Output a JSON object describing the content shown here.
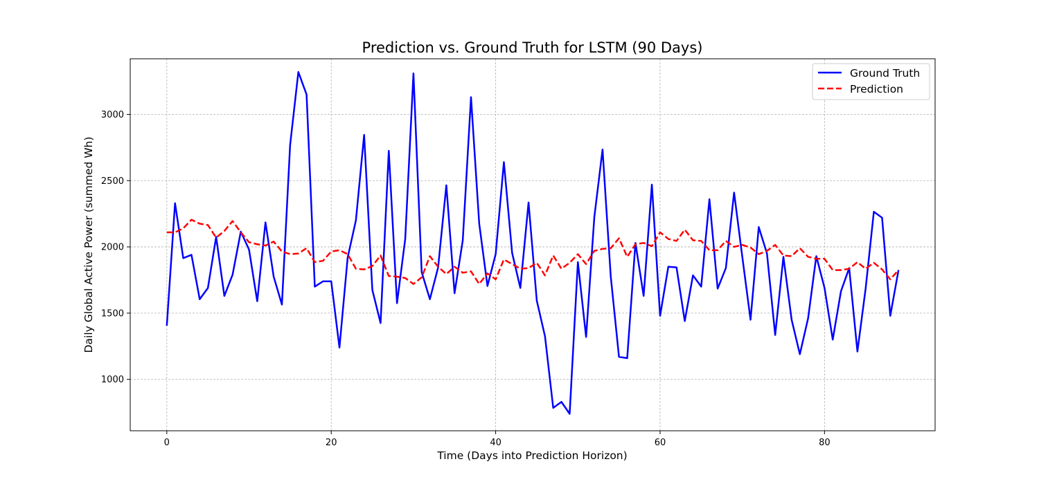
{
  "chart_data": {
    "type": "line",
    "title": "Prediction vs. Ground Truth for LSTM (90 Days)",
    "xlabel": "Time (Days into Prediction Horizon)",
    "ylabel": "Daily Global Active Power (summed Wh)",
    "xlim": [
      -4.45,
      93.45
    ],
    "ylim": [
      612,
      3420
    ],
    "xticks": [
      0,
      20,
      40,
      60,
      80
    ],
    "yticks": [
      1000,
      1500,
      2000,
      2500,
      3000
    ],
    "grid": true,
    "legend_position": "top-right",
    "x": [
      0,
      1,
      2,
      3,
      4,
      5,
      6,
      7,
      8,
      9,
      10,
      11,
      12,
      13,
      14,
      15,
      16,
      17,
      18,
      19,
      20,
      21,
      22,
      23,
      24,
      25,
      26,
      27,
      28,
      29,
      30,
      31,
      32,
      33,
      34,
      35,
      36,
      37,
      38,
      39,
      40,
      41,
      42,
      43,
      44,
      45,
      46,
      47,
      48,
      49,
      50,
      51,
      52,
      53,
      54,
      55,
      56,
      57,
      58,
      59,
      60,
      61,
      62,
      63,
      64,
      65,
      66,
      67,
      68,
      69,
      70,
      71,
      72,
      73,
      74,
      75,
      76,
      77,
      78,
      79,
      80,
      81,
      82,
      83,
      84,
      85,
      86,
      87,
      88,
      89
    ],
    "series": [
      {
        "name": "Ground Truth",
        "color": "#0000ff",
        "style": "solid",
        "values": [
          1405,
          2330,
          1915,
          1940,
          1605,
          1690,
          2075,
          1630,
          1790,
          2115,
          1980,
          1590,
          2185,
          1775,
          1565,
          2770,
          3320,
          3150,
          1700,
          1740,
          1740,
          1240,
          1920,
          2200,
          2845,
          1675,
          1425,
          2725,
          1575,
          2060,
          3310,
          1810,
          1605,
          1845,
          2465,
          1650,
          2050,
          3130,
          2175,
          1705,
          1945,
          2640,
          1955,
          1690,
          2335,
          1595,
          1325,
          785,
          830,
          740,
          1885,
          1320,
          2225,
          2735,
          1775,
          1170,
          1160,
          2030,
          1630,
          2470,
          1480,
          1850,
          1845,
          1440,
          1785,
          1700,
          2360,
          1685,
          1840,
          2410,
          1925,
          1450,
          2150,
          1950,
          1335,
          1925,
          1450,
          1190,
          1460,
          1930,
          1690,
          1300,
          1665,
          1840,
          1210,
          1685,
          2265,
          2220,
          1480,
          1825
        ]
      },
      {
        "name": "Prediction",
        "color": "#ff0000",
        "style": "dashed",
        "values": [
          2110,
          2110,
          2140,
          2205,
          2175,
          2165,
          2070,
          2120,
          2195,
          2110,
          2035,
          2020,
          2010,
          2040,
          1965,
          1945,
          1950,
          1990,
          1885,
          1895,
          1965,
          1975,
          1945,
          1835,
          1830,
          1855,
          1935,
          1780,
          1775,
          1765,
          1720,
          1770,
          1930,
          1850,
          1795,
          1850,
          1805,
          1815,
          1720,
          1800,
          1755,
          1905,
          1870,
          1835,
          1840,
          1880,
          1785,
          1935,
          1835,
          1880,
          1945,
          1870,
          1970,
          1985,
          1990,
          2065,
          1925,
          2020,
          2030,
          2005,
          2110,
          2060,
          2045,
          2130,
          2050,
          2045,
          1975,
          1975,
          2045,
          2000,
          2015,
          1995,
          1945,
          1970,
          2015,
          1935,
          1930,
          1990,
          1925,
          1910,
          1910,
          1825,
          1825,
          1835,
          1885,
          1835,
          1880,
          1830,
          1755,
          1825
        ]
      }
    ]
  }
}
